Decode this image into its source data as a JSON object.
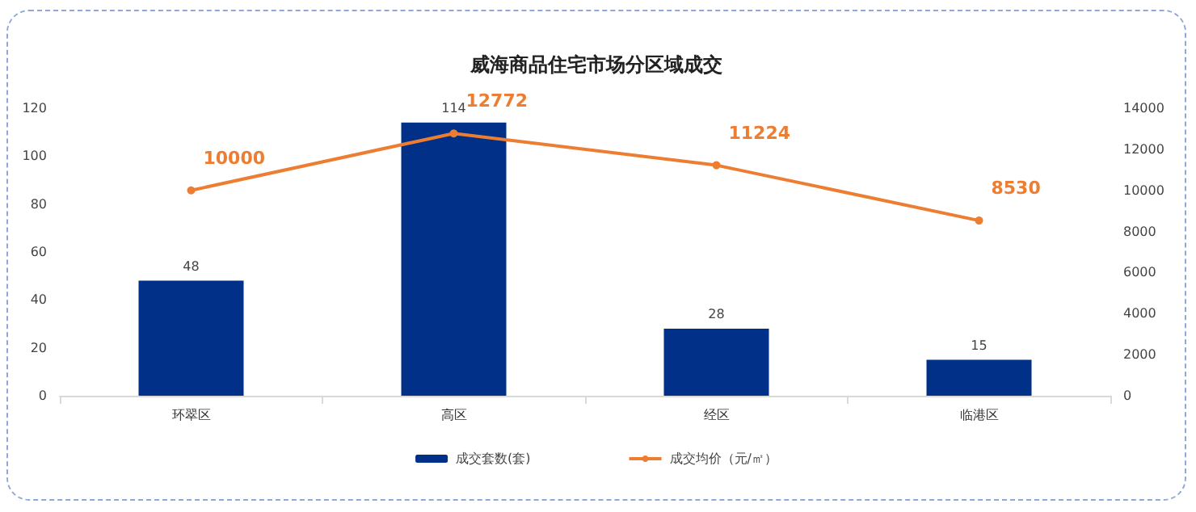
{
  "chart_data": {
    "type": "bar",
    "title": "威海商品住宅市场分区域成交",
    "categories": [
      "环翠区",
      "高区",
      "经区",
      "临港区"
    ],
    "series": [
      {
        "name": "成交套数(套)",
        "color": "#003087",
        "values": [
          48,
          114,
          28,
          15
        ]
      },
      {
        "name": "成交均价（元/㎡）",
        "type": "line",
        "axis": "y2",
        "color": "#ed7d31",
        "values": [
          10000,
          12772,
          11224,
          8530
        ],
        "marker": "circle"
      }
    ],
    "ylim": [
      0,
      120
    ],
    "yticks": [
      0,
      20,
      40,
      60,
      80,
      100,
      120
    ],
    "y2lim": [
      0,
      14000
    ],
    "y2ticks": [
      0,
      2000,
      4000,
      6000,
      8000,
      10000,
      12000,
      14000
    ],
    "data_labels": true,
    "grid": false,
    "legend": "bottom"
  }
}
